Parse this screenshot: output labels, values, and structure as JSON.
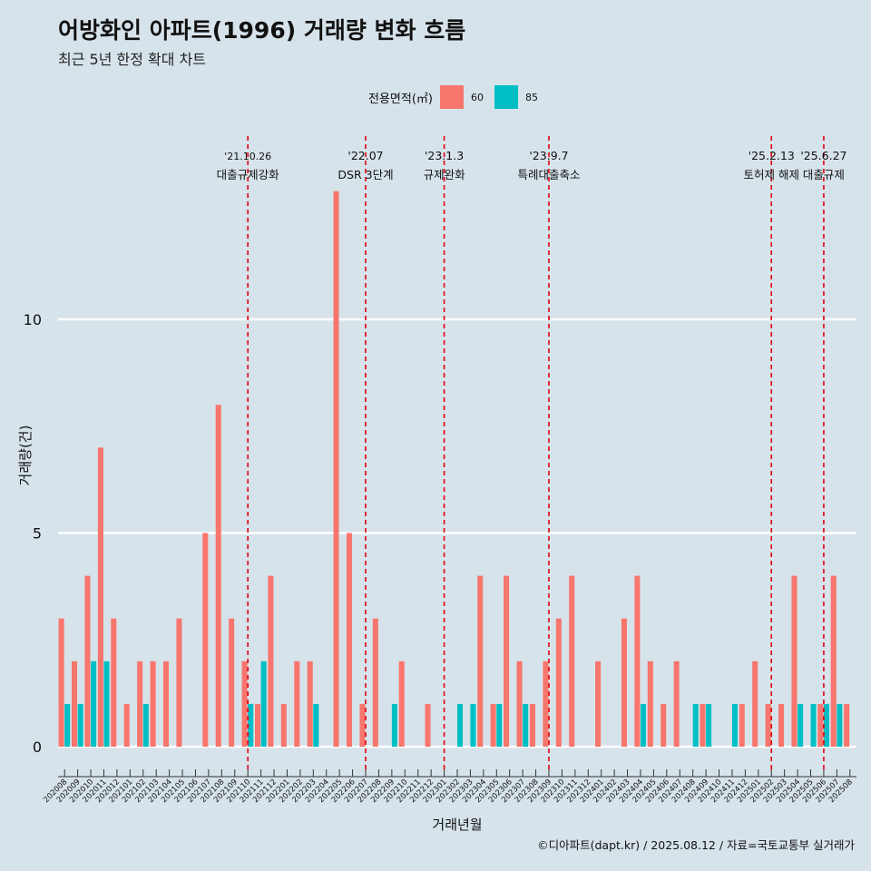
{
  "title": "어방화인 아파트(1996) 거래량 변화 흐름",
  "subtitle": "최근 5년 한정 확대 차트",
  "caption": "©디아파트(dapt.kr) / 2025.08.12 / 자료=국토교통부 실거래가",
  "legend": {
    "title": "전용면적(㎡)",
    "items": [
      {
        "label": "60",
        "color": "#f8766d"
      },
      {
        "label": "85",
        "color": "#00bfc4"
      }
    ]
  },
  "chart_data": {
    "type": "bar",
    "xlabel": "거래년월",
    "ylabel": "거래량(건)",
    "ylim": [
      -0.6,
      14.8
    ],
    "yticks": [
      0,
      5,
      10
    ],
    "grid": true,
    "legend_position": "top",
    "categories": [
      "202008",
      "202009",
      "202010",
      "202011",
      "202012",
      "202101",
      "202102",
      "202103",
      "202104",
      "202105",
      "202106",
      "202107",
      "202108",
      "202109",
      "202110",
      "202111",
      "202112",
      "202201",
      "202202",
      "202203",
      "202204",
      "202205",
      "202206",
      "202207",
      "202208",
      "202209",
      "202210",
      "202211",
      "202212",
      "202301",
      "202302",
      "202303",
      "202304",
      "202305",
      "202306",
      "202307",
      "202308",
      "202309",
      "202310",
      "202311",
      "202312",
      "202401",
      "202402",
      "202403",
      "202404",
      "202405",
      "202406",
      "202407",
      "202408",
      "202409",
      "202410",
      "202411",
      "202412",
      "202501",
      "202502",
      "202503",
      "202504",
      "202505",
      "202506",
      "202507",
      "202508"
    ],
    "series": [
      {
        "name": "60",
        "color": "#f8766d",
        "values": [
          3,
          2,
          4,
          7,
          3,
          1,
          2,
          2,
          2,
          3,
          0,
          5,
          8,
          3,
          2,
          1,
          4,
          1,
          2,
          2,
          0,
          13,
          5,
          1,
          3,
          0,
          2,
          0,
          1,
          0,
          0,
          0,
          4,
          1,
          4,
          2,
          1,
          2,
          3,
          4,
          0,
          2,
          0,
          3,
          4,
          2,
          1,
          2,
          0,
          1,
          0,
          0,
          1,
          2,
          1,
          1,
          4,
          0,
          1,
          4,
          1
        ]
      },
      {
        "name": "85",
        "color": "#00bfc4",
        "values": [
          1,
          1,
          2,
          2,
          0,
          0,
          1,
          0,
          0,
          0,
          0,
          0,
          0,
          0,
          1,
          2,
          0,
          0,
          0,
          1,
          0,
          0,
          0,
          0,
          0,
          1,
          0,
          0,
          0,
          0,
          1,
          1,
          0,
          1,
          0,
          1,
          0,
          0,
          0,
          0,
          0,
          0,
          0,
          0,
          1,
          0,
          0,
          0,
          1,
          1,
          0,
          1,
          0,
          0,
          0,
          0,
          1,
          1,
          1,
          1,
          0
        ]
      }
    ],
    "annotations": [
      {
        "date_label": "'21.10.26",
        "text": "대출규제강화",
        "x": "202110"
      },
      {
        "date_label": "'22.07",
        "text": "DSR 3단계",
        "x": "202207"
      },
      {
        "date_label": "'23.1.3",
        "text": "규제완화",
        "x": "202301"
      },
      {
        "date_label": "'23.9.7",
        "text": "특례대출축소",
        "x": "202309"
      },
      {
        "date_label": "'25.2.13",
        "text": "토허제 해제",
        "x": "202502"
      },
      {
        "date_label": "'25.6.27",
        "text": "대출규제",
        "x": "202506"
      }
    ]
  }
}
